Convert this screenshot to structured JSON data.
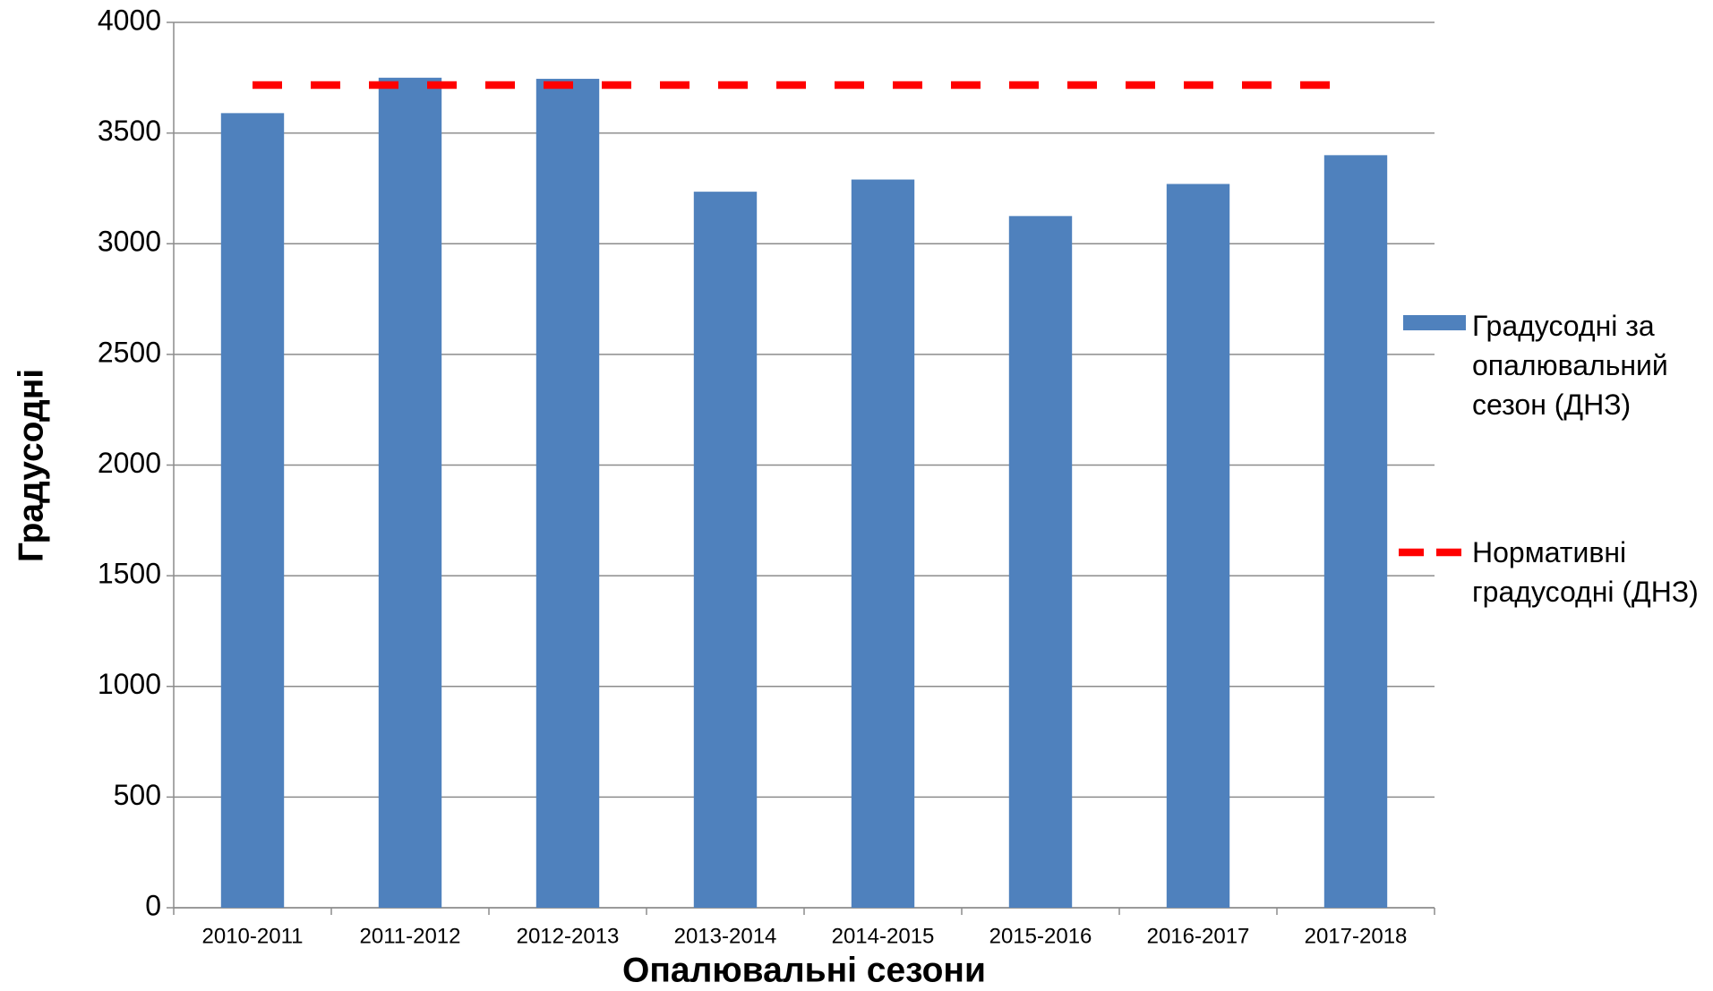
{
  "chart_data": {
    "type": "bar",
    "x_label": "Опалювальні сезони",
    "y_label": "Градусодні",
    "categories": [
      "2010-2011",
      "2011-2012",
      "2012-2013",
      "2013-2014",
      "2014-2015",
      "2015-2016",
      "2016-2017",
      "2017-2018"
    ],
    "series": [
      {
        "name": "Градусодні за опалювальний сезон (ДНЗ)",
        "type": "bar",
        "color": "#4f81bd",
        "values": [
          3590,
          3750,
          3745,
          3235,
          3290,
          3125,
          3270,
          3400
        ]
      },
      {
        "name": "Нормативні градусодні (ДНЗ)",
        "type": "line",
        "dashed": true,
        "color": "#ff0000",
        "values": [
          3717,
          3717,
          3717,
          3717,
          3717,
          3717,
          3717,
          3717
        ]
      }
    ],
    "ylim": [
      0,
      4000
    ],
    "yticks": [
      0,
      500,
      1000,
      1500,
      2000,
      2500,
      3000,
      3500,
      4000
    ],
    "grid": true,
    "legend": "right"
  }
}
